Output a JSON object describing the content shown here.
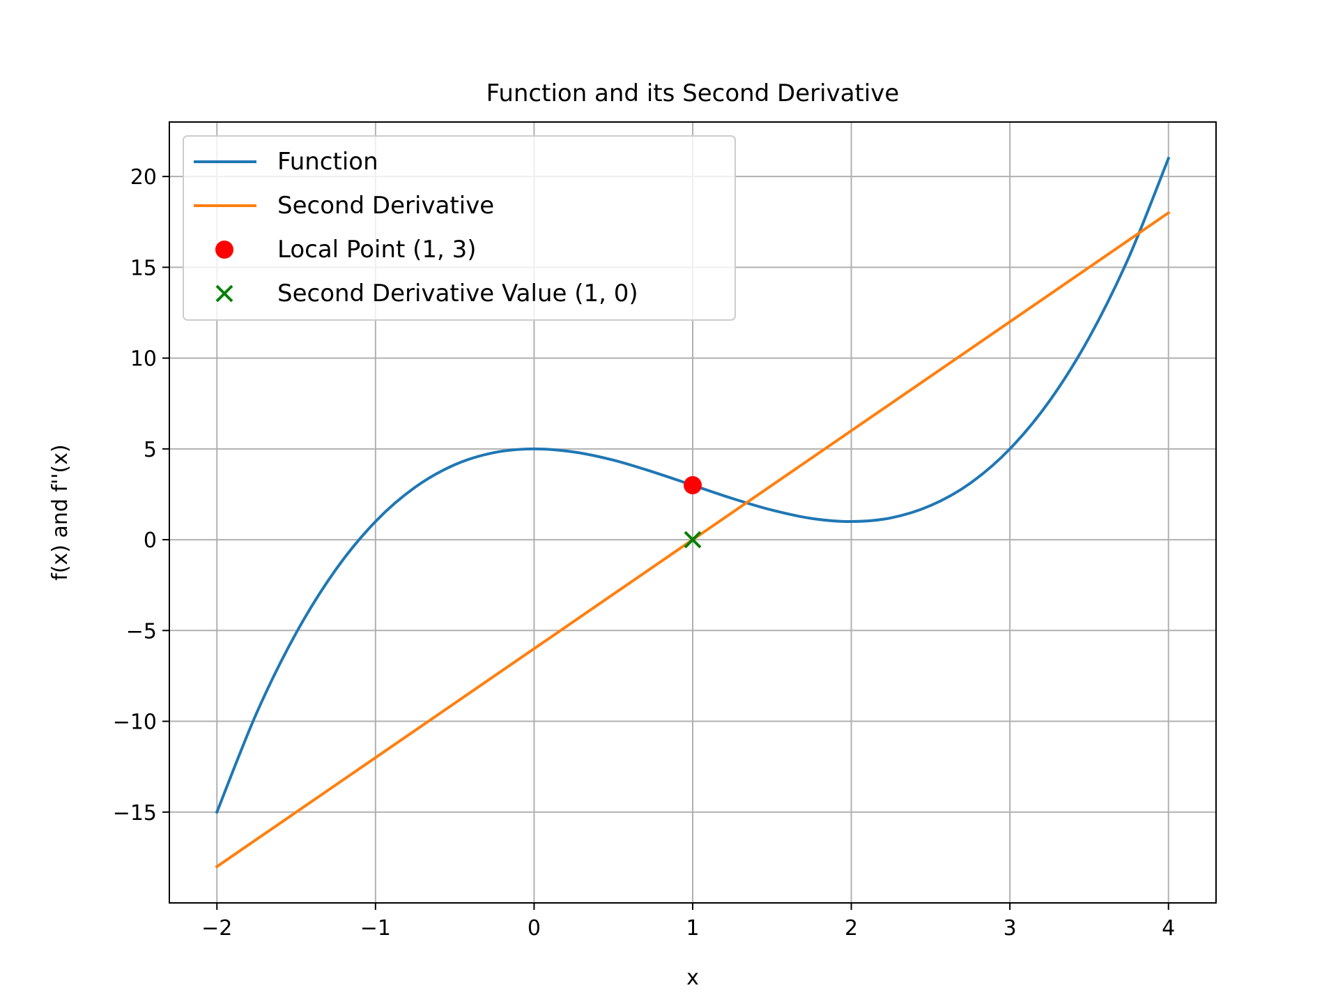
{
  "chart_data": {
    "type": "line",
    "title": "Function and its Second Derivative",
    "xlabel": "x",
    "ylabel": "f(x) and f''(x)",
    "xlim": [
      -2.3,
      4.3
    ],
    "ylim": [
      -20.0,
      23.0
    ],
    "xticks": [
      -2,
      -1,
      0,
      1,
      2,
      3,
      4
    ],
    "xtick_labels": [
      "−2",
      "−1",
      "0",
      "1",
      "2",
      "3",
      "4"
    ],
    "yticks": [
      -15,
      -10,
      -5,
      0,
      5,
      10,
      15,
      20
    ],
    "ytick_labels": [
      "−15",
      "−10",
      "−5",
      "0",
      "5",
      "10",
      "15",
      "20"
    ],
    "grid": true,
    "legend_position": "upper-left",
    "series": [
      {
        "name": "Function",
        "kind": "line",
        "color": "#1f77b4",
        "x": [
          -2.0,
          -1.75,
          -1.5,
          -1.25,
          -1.0,
          -0.75,
          -0.5,
          -0.25,
          0.0,
          0.25,
          0.5,
          0.75,
          1.0,
          1.25,
          1.5,
          1.75,
          2.0,
          2.25,
          2.5,
          2.75,
          3.0,
          3.25,
          3.5,
          3.75,
          4.0
        ],
        "y": [
          -15.0,
          -9.55,
          -5.13,
          -1.64,
          1.0,
          2.89,
          4.13,
          4.8,
          5.0,
          4.83,
          4.38,
          3.73,
          3.0,
          2.27,
          1.63,
          1.17,
          1.0,
          1.2,
          1.88,
          3.11,
          5.0,
          7.64,
          11.13,
          15.55,
          21.0
        ]
      },
      {
        "name": "Second Derivative",
        "kind": "line",
        "color": "#ff7f0e",
        "x": [
          -2.0,
          4.0
        ],
        "y": [
          -18.0,
          18.0
        ]
      },
      {
        "name": "Local Point (1, 3)",
        "kind": "scatter",
        "marker": "circle",
        "color": "#ff0000",
        "x": [
          1
        ],
        "y": [
          3
        ]
      },
      {
        "name": "Second Derivative Value (1, 0)",
        "kind": "scatter",
        "marker": "x",
        "color": "#008000",
        "x": [
          1
        ],
        "y": [
          0
        ]
      }
    ]
  }
}
